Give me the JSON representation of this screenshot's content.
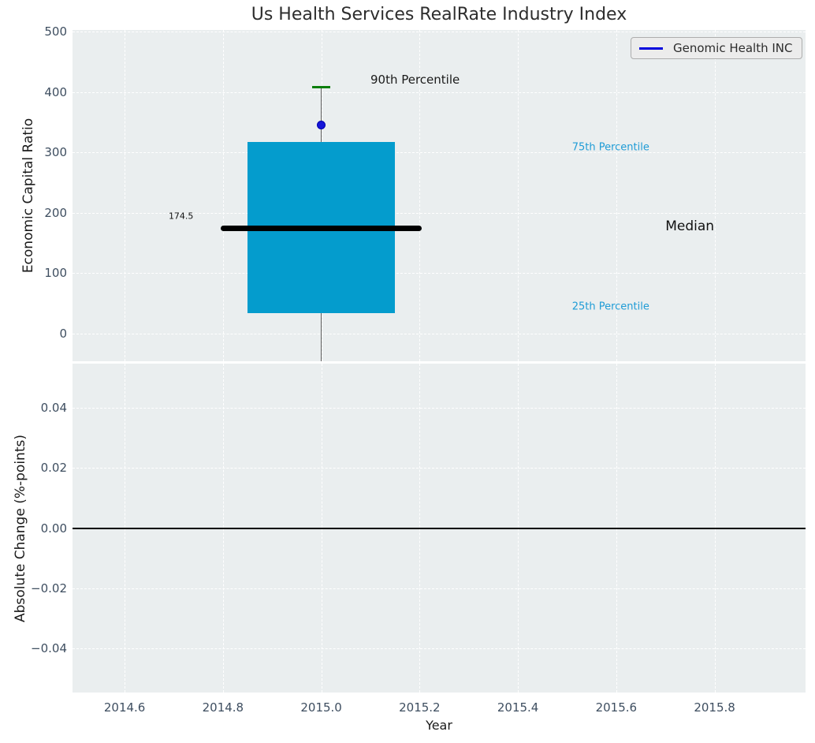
{
  "title": "Us Health Services RealRate Industry Index",
  "legend": {
    "label": "Genomic Health INC",
    "line_color": "#0000dd"
  },
  "colors": {
    "panel_bg": "#eaeeef",
    "grid": "#ffffff",
    "box_fill": "#049ccd",
    "median_line": "#000000",
    "whisker": "#5a5a5a",
    "cap_90th": "#0b7e0b",
    "company_dot": "#1515d8",
    "company_dot_edge": "#0000b0",
    "zero_line": "#000000",
    "tick_text": "#3e4e60",
    "annotation_blue": "#1f9cd6",
    "annotation_black": "#1a1a1a"
  },
  "chart_data": {
    "type": "boxplot",
    "title": "Us Health Services RealRate Industry Index",
    "xlabel": "Year",
    "x": {
      "label": "Year",
      "ticks": [
        2014.6,
        2014.8,
        2015.0,
        2015.2,
        2015.4,
        2015.6,
        2015.8
      ],
      "lim": [
        2014.494,
        2015.985
      ],
      "fmt": "1f"
    },
    "panels": [
      {
        "ylabel": "Economic Capital Ratio",
        "ylim": [
          -46,
          503
        ],
        "yticks": [
          0,
          100,
          200,
          300,
          400,
          500
        ],
        "fmt": "int",
        "grid": true,
        "boxplot": {
          "x": 2015.0,
          "p90": 408,
          "p75": 317,
          "median": 174.5,
          "p25": 34,
          "lower_whisker": -46,
          "lower_whisker_clipped": true,
          "box_halfwidth_years": 0.1505,
          "median_halfwidth_years": 0.205,
          "cap_halfwidth_years": 0.018,
          "company_point": {
            "name": "Genomic Health INC",
            "value": 346
          }
        },
        "annotations": [
          {
            "text": "90th Percentile",
            "x": 2015.1,
            "y": 420,
            "align": "left",
            "size": 15,
            "color": "#1a1a1a"
          },
          {
            "text": "75th Percentile",
            "x": 2015.51,
            "y": 308,
            "align": "left",
            "size": 13,
            "color": "#1f9cd6"
          },
          {
            "text": "Median",
            "x": 2015.7,
            "y": 177,
            "align": "left",
            "size": 17,
            "color": "#111111"
          },
          {
            "text": "25th Percentile",
            "x": 2015.51,
            "y": 44,
            "align": "left",
            "size": 13,
            "color": "#1f9cd6"
          },
          {
            "text": "174.5",
            "x": 2014.74,
            "y": 195,
            "align": "right",
            "size": 11,
            "color": "#111111"
          }
        ]
      },
      {
        "ylabel": "Absolute Change (%-points)",
        "ylim": [
          -0.0546,
          0.0546
        ],
        "yticks": [
          -0.04,
          -0.02,
          0.0,
          0.02,
          0.04
        ],
        "fmt": "2f",
        "grid": true,
        "zero_line": 0.0
      }
    ],
    "legend_position": "upper right",
    "legend_entries": [
      "Genomic Health INC"
    ]
  }
}
